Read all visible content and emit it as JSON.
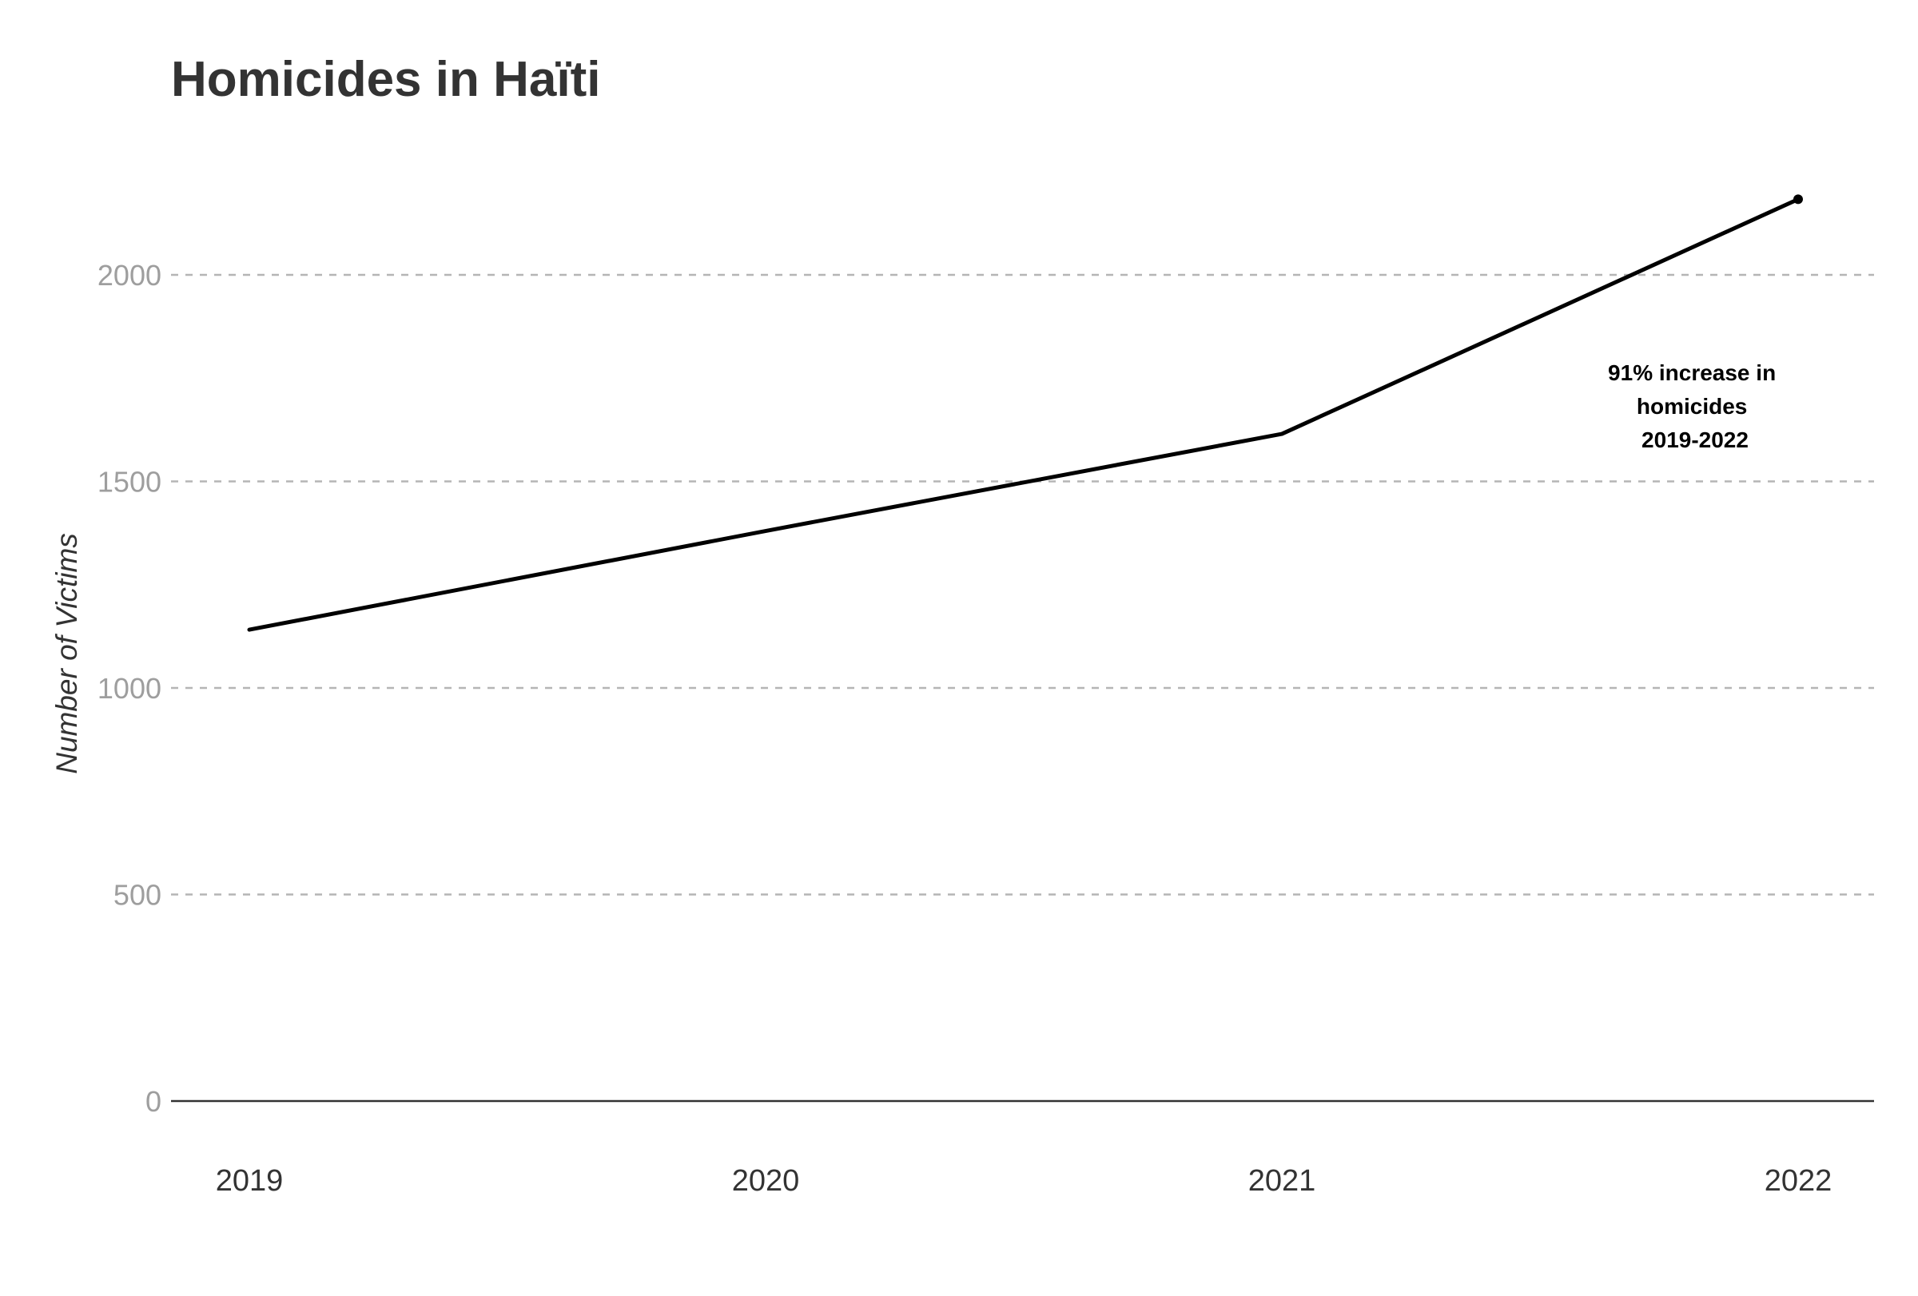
{
  "chart_data": {
    "type": "line",
    "title": "Homicides in Haïti",
    "xlabel": "",
    "ylabel": "Number of Victims",
    "x": [
      "2019",
      "2020",
      "2021",
      "2022"
    ],
    "series": [
      {
        "values": [
          1141,
          1380,
          1615,
          2183
        ]
      }
    ],
    "ylim": [
      0,
      2200
    ],
    "yticks": [
      0,
      500,
      1000,
      1500,
      2000
    ],
    "grid": "horizontal-dashed",
    "colors": {
      "line": "#000000",
      "grid": "#b5b5b5",
      "title": "#333333",
      "ytick": "#9e9e9e"
    },
    "annotation": {
      "lines": [
        "91% increase in",
        "homicides",
        "2019-2022"
      ]
    }
  }
}
